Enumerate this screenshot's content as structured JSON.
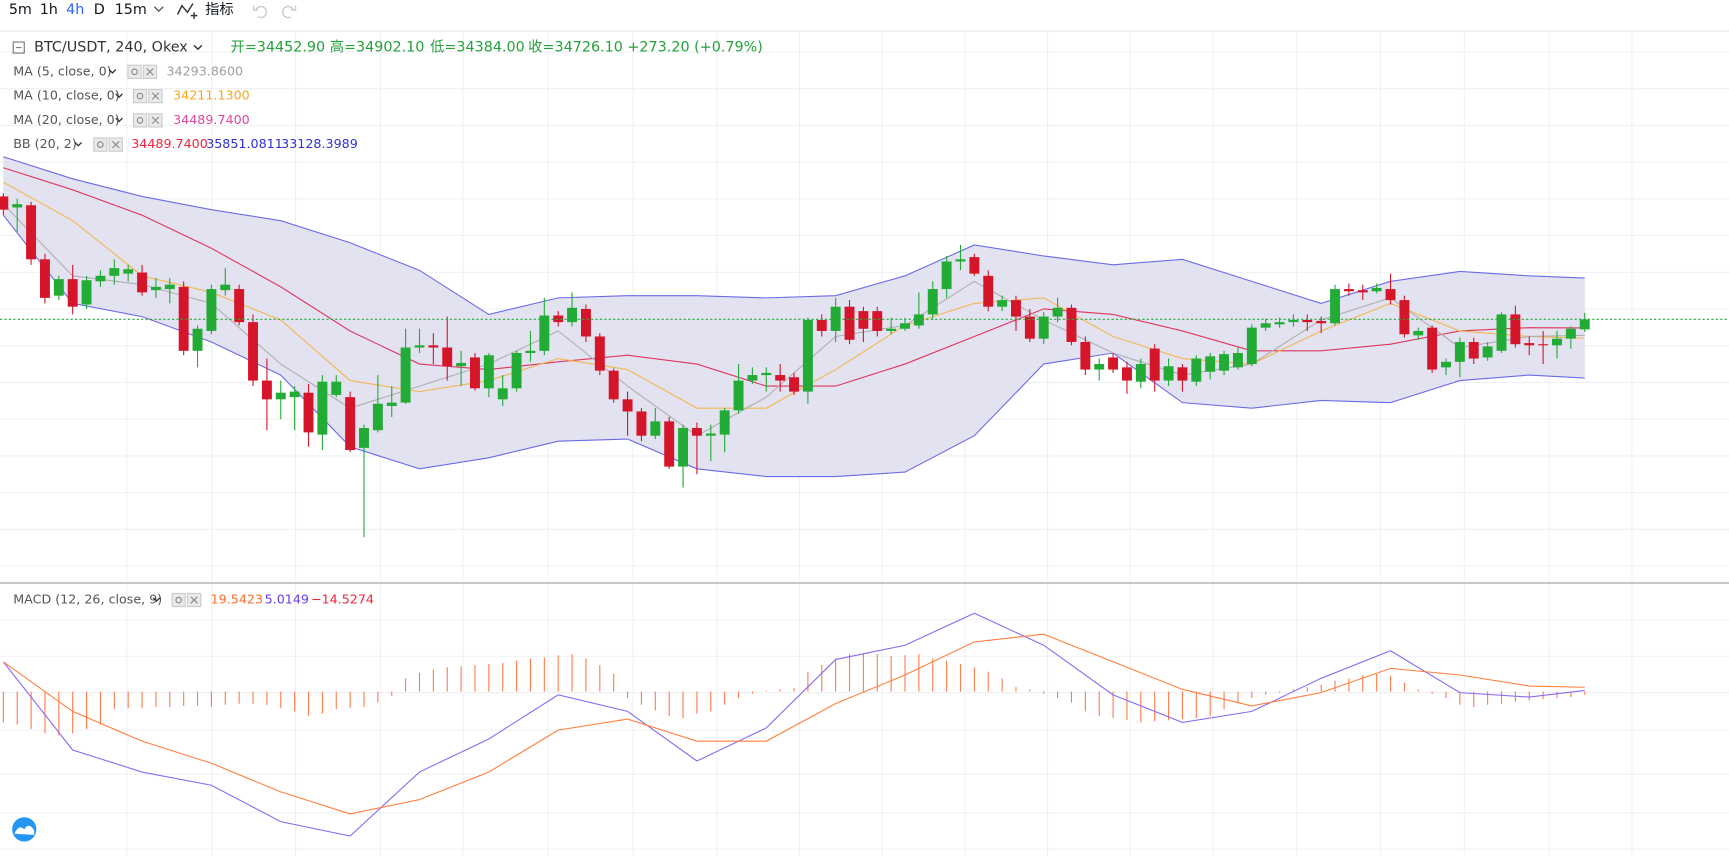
{
  "toolbar": {
    "intervals": [
      "5m",
      "1h",
      "4h",
      "D",
      "15m"
    ],
    "active": "4h",
    "indicators": "指标"
  },
  "legend": {
    "symbol": "BTC/USDT, 240, Okex",
    "ohlc": [
      "开=34452.90",
      "高=34902.10",
      "低=34384.00",
      "收=34726.10"
    ],
    "change": "+273.20 (+0.79%)",
    "studies": [
      {
        "name": "MA (5, close, 0)",
        "values": [
          {
            "text": "34293.8600",
            "color": "#9e9e9e"
          }
        ]
      },
      {
        "name": "MA (10, close, 0)",
        "values": [
          {
            "text": "34211.1300",
            "color": "#f5a623"
          }
        ]
      },
      {
        "name": "MA (20, close, 0)",
        "values": [
          {
            "text": "34489.7400",
            "color": "#e0479e"
          }
        ]
      },
      {
        "name": "BB (20, 2)",
        "values": [
          {
            "text": "34489.7400",
            "color": "#f0253b"
          },
          {
            "text": "35851.0811",
            "color": "#2f2fd8"
          },
          {
            "text": "33128.3989",
            "color": "#2f2fd8"
          }
        ]
      }
    ],
    "macd": {
      "name": "MACD (12, 26, close, 9)",
      "values": [
        {
          "text": "19.5423",
          "color": "#ff6d2e"
        },
        {
          "text": "5.0149",
          "color": "#6a3fe8"
        },
        {
          "text": "−14.5274",
          "color": "#f0253b"
        }
      ]
    }
  },
  "chart_data": [
    {
      "type": "candlestick",
      "xlim": [
        -0.24,
        124.4
      ],
      "ylim": [
        27570,
        42570
      ],
      "up_color": "#22ab35",
      "down_color": "#d5152a",
      "price_line_color": "#22ab35",
      "band_color": "#e2e2f0",
      "open": [
        38070,
        37770,
        37830,
        36360,
        35370,
        35820,
        35130,
        35760,
        35910,
        35970,
        36000,
        35520,
        35550,
        35610,
        33870,
        34410,
        35520,
        35550,
        34650,
        33060,
        32550,
        32610,
        32730,
        31590,
        32670,
        32610,
        31230,
        31710,
        32370,
        32460,
        33960,
        34020,
        33960,
        33450,
        33690,
        32850,
        32550,
        32850,
        33810,
        33870,
        34830,
        34650,
        35010,
        34260,
        33330,
        32550,
        32220,
        31560,
        31950,
        30720,
        31770,
        31560,
        31590,
        32250,
        33060,
        33210,
        33210,
        33150,
        32760,
        34710,
        34410,
        35070,
        34950,
        34950,
        34410,
        34470,
        34560,
        34860,
        35550,
        36300,
        36420,
        35910,
        35070,
        35250,
        34800,
        34200,
        34800,
        35040,
        34110,
        33360,
        33690,
        33420,
        33030,
        33930,
        33060,
        33420,
        33030,
        33300,
        33330,
        33420,
        33510,
        34500,
        34590,
        34650,
        34710,
        34680,
        34620,
        35550,
        35520,
        35490,
        35550,
        35250,
        34290,
        34500,
        33420,
        33570,
        34110,
        33690,
        33870,
        34860,
        34080,
        34050,
        34020,
        34200,
        34452.9
      ],
      "high": [
        38160,
        38010,
        37920,
        36510,
        35910,
        36210,
        35910,
        36060,
        36360,
        36210,
        36210,
        35850,
        35850,
        35760,
        34560,
        35670,
        36120,
        35670,
        34860,
        33660,
        33060,
        32910,
        32970,
        33210,
        33210,
        32760,
        31860,
        33210,
        32910,
        34470,
        34470,
        34350,
        34800,
        33870,
        33810,
        33810,
        33210,
        33870,
        34410,
        35310,
        34950,
        35460,
        35130,
        34350,
        33390,
        32760,
        32310,
        32310,
        32070,
        31860,
        31920,
        31860,
        32310,
        33510,
        33420,
        33420,
        33510,
        33270,
        34770,
        34860,
        35310,
        35250,
        35070,
        35070,
        34770,
        34770,
        35460,
        35760,
        36450,
        36750,
        36510,
        36060,
        35370,
        35370,
        35010,
        34920,
        35310,
        35130,
        34260,
        33660,
        33810,
        33570,
        33660,
        34050,
        33660,
        33510,
        33750,
        33810,
        33870,
        33960,
        34590,
        34740,
        34770,
        34860,
        34860,
        34800,
        35670,
        35700,
        35670,
        35700,
        35970,
        35370,
        34500,
        34560,
        33660,
        34230,
        34230,
        34110,
        34920,
        35100,
        34260,
        34410,
        34410,
        34530,
        34902.1
      ],
      "low": [
        37560,
        37110,
        36210,
        35160,
        35250,
        34860,
        35010,
        35610,
        35670,
        35760,
        35370,
        35310,
        35160,
        33750,
        33420,
        34320,
        35370,
        34560,
        32910,
        31710,
        32010,
        31710,
        31260,
        31170,
        32610,
        31110,
        28800,
        31650,
        32070,
        32430,
        33810,
        33510,
        33060,
        32910,
        32790,
        32610,
        32370,
        32760,
        33570,
        33750,
        34530,
        34530,
        34110,
        33210,
        32460,
        31560,
        31410,
        31470,
        30660,
        30150,
        30510,
        30870,
        31110,
        32160,
        32970,
        32760,
        32760,
        32670,
        32430,
        34260,
        34110,
        34050,
        34110,
        34260,
        34320,
        34410,
        34470,
        34710,
        35310,
        36060,
        35910,
        34950,
        34950,
        34410,
        34110,
        34050,
        34650,
        34020,
        33210,
        33060,
        33270,
        32700,
        32850,
        32760,
        32910,
        32760,
        32910,
        33090,
        33210,
        33360,
        33450,
        34410,
        34500,
        34530,
        34410,
        34350,
        34560,
        35370,
        35250,
        35430,
        35130,
        34230,
        34170,
        33270,
        33210,
        33150,
        33510,
        33600,
        33810,
        33960,
        33750,
        33510,
        33660,
        33930,
        34384
      ],
      "close": [
        37710,
        37860,
        36360,
        35310,
        35820,
        35070,
        35790,
        35910,
        36120,
        36090,
        35460,
        35610,
        35670,
        33870,
        34470,
        35550,
        35670,
        34650,
        33060,
        32550,
        32730,
        32760,
        31650,
        33030,
        33030,
        31170,
        31770,
        32430,
        32460,
        33960,
        34020,
        33960,
        33450,
        33540,
        32850,
        33750,
        32850,
        33810,
        33870,
        34830,
        34650,
        35040,
        34260,
        33330,
        32550,
        32220,
        31560,
        31950,
        30720,
        31770,
        31560,
        31620,
        32250,
        33060,
        33210,
        33270,
        33060,
        32760,
        34710,
        34410,
        35070,
        34170,
        34470,
        34410,
        34470,
        34620,
        34860,
        35550,
        36300,
        36360,
        35970,
        35070,
        35250,
        34800,
        34200,
        34800,
        35040,
        34110,
        33360,
        33510,
        33360,
        33060,
        33510,
        33060,
        33450,
        33060,
        33660,
        33720,
        33780,
        33810,
        34500,
        34620,
        34650,
        34710,
        34650,
        34620,
        35550,
        35490,
        35460,
        35580,
        35250,
        34320,
        34410,
        33360,
        33570,
        34110,
        33660,
        33990,
        34860,
        34050,
        34020,
        34020,
        34200,
        34470,
        34726.1
      ],
      "line_x": [
        0,
        5,
        10,
        15,
        20,
        25,
        30,
        35,
        40,
        45,
        50,
        55,
        60,
        65,
        70,
        75,
        80,
        85,
        90,
        95,
        100,
        105,
        110,
        114
      ],
      "series": [
        {
          "color": "#6b6be6",
          "values": [
            39150,
            38550,
            38070,
            37710,
            37410,
            36810,
            36060,
            34860,
            35310,
            35370,
            35370,
            35310,
            35370,
            35910,
            36750,
            36450,
            36210,
            36360,
            35760,
            35160,
            35760,
            36030,
            35910,
            35851.0811
          ]
        },
        {
          "color": "#e0365f",
          "values": [
            38850,
            38250,
            37560,
            36660,
            35610,
            34410,
            33510,
            33360,
            33570,
            33750,
            33510,
            32910,
            32910,
            33510,
            34260,
            35010,
            34860,
            34410,
            33870,
            33870,
            34050,
            34410,
            34500,
            34489.74
          ]
        },
        {
          "color": "#6b6be6",
          "values": [
            37560,
            35160,
            34800,
            34110,
            33210,
            31260,
            30660,
            30960,
            31410,
            31470,
            30660,
            30450,
            30450,
            30570,
            31560,
            33510,
            33810,
            32460,
            32310,
            32520,
            32460,
            33060,
            33210,
            33128.3989
          ]
        },
        {
          "color": "#f5b74f",
          "values": [
            38460,
            37410,
            35910,
            35460,
            34710,
            33060,
            32760,
            33060,
            33660,
            33360,
            32310,
            32310,
            33360,
            34560,
            35160,
            35310,
            34260,
            33660,
            33510,
            34410,
            35160,
            34410,
            34260,
            34211.13
          ]
        },
        {
          "color": "#b0b0b0",
          "values": [
            37860,
            35910,
            35670,
            35160,
            33510,
            32310,
            32910,
            33510,
            34410,
            32910,
            31560,
            32610,
            34260,
            34560,
            35760,
            34710,
            33810,
            33210,
            33510,
            34710,
            35310,
            33960,
            34260,
            34293.86
          ]
        }
      ]
    },
    {
      "type": "macd",
      "xlim": [
        -0.24,
        124.4
      ],
      "ylim": [
        -745,
        485
      ],
      "histogram_color": "#ff7b4a",
      "histogram": [
        -140,
        -150,
        -170,
        -190,
        -200,
        -190,
        -170,
        -150,
        -80,
        -75,
        -75,
        -70,
        -70,
        -65,
        -65,
        -70,
        -60,
        -55,
        -55,
        -60,
        -75,
        -90,
        -110,
        -100,
        -80,
        -75,
        -70,
        -50,
        -20,
        60,
        85,
        100,
        110,
        115,
        120,
        125,
        130,
        140,
        150,
        155,
        165,
        170,
        150,
        120,
        80,
        -30,
        -60,
        -85,
        -110,
        -120,
        -100,
        -90,
        -60,
        -30,
        -10,
        5,
        10,
        15,
        90,
        120,
        150,
        170,
        175,
        170,
        160,
        165,
        170,
        150,
        140,
        125,
        110,
        90,
        60,
        20,
        10,
        -10,
        -30,
        -50,
        -90,
        -110,
        -120,
        -130,
        -140,
        -135,
        -130,
        -125,
        -120,
        -110,
        -80,
        -50,
        -30,
        -15,
        -5,
        10,
        20,
        30,
        50,
        60,
        75,
        80,
        70,
        40,
        10,
        -10,
        -30,
        -60,
        -70,
        -60,
        -55,
        -45,
        -40,
        -35,
        -30,
        -25,
        -14.5274
      ],
      "line_x": [
        0,
        5,
        10,
        15,
        20,
        25,
        30,
        35,
        40,
        45,
        50,
        55,
        60,
        65,
        70,
        75,
        80,
        85,
        90,
        95,
        100,
        105,
        110,
        114
      ],
      "series": [
        {
          "color": "#8a6cf0",
          "values": [
            135,
            -265,
            -365,
            -425,
            -590,
            -655,
            -365,
            -215,
            -15,
            -90,
            -315,
            -165,
            145,
            210,
            355,
            210,
            -15,
            -140,
            -90,
            60,
            185,
            -5,
            -25,
            5.0149
          ]
        },
        {
          "color": "#ff7f3f",
          "values": [
            135,
            -90,
            -225,
            -325,
            -455,
            -555,
            -490,
            -365,
            -175,
            -125,
            -225,
            -225,
            -55,
            75,
            225,
            260,
            135,
            10,
            -65,
            -5,
            105,
            75,
            25,
            19.5423
          ]
        }
      ]
    }
  ]
}
